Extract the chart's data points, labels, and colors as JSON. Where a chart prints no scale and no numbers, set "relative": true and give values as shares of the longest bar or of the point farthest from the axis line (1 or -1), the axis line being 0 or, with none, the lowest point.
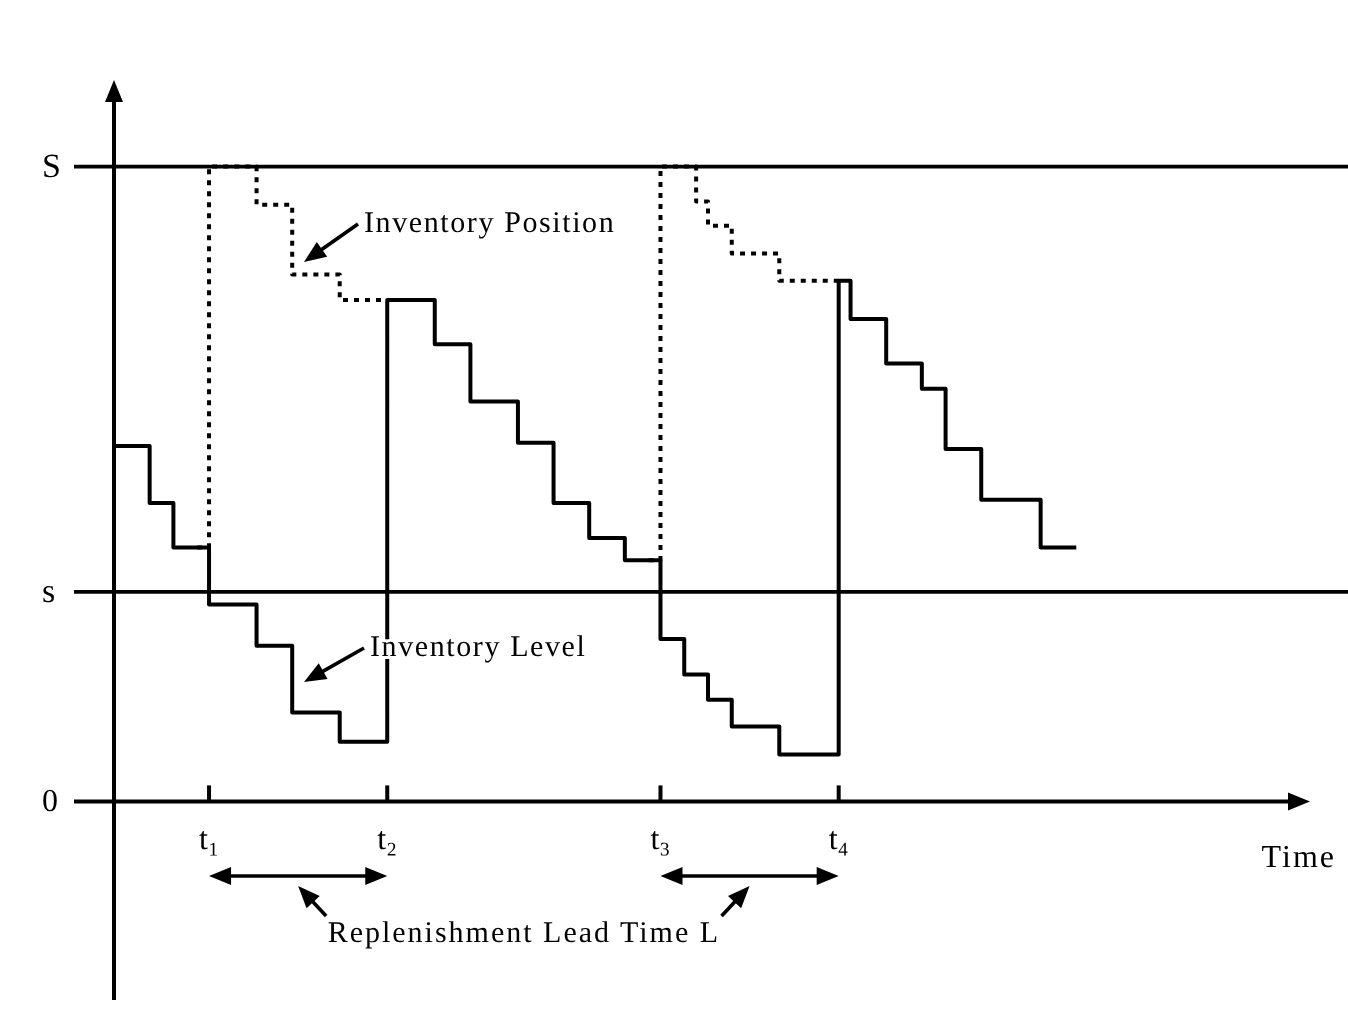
{
  "chart_data": {
    "type": "step",
    "relative": true,
    "xlabel": "Time",
    "categories": [
      null,
      null,
      null,
      null,
      null,
      null,
      null,
      null,
      "t₁",
      null,
      null,
      null,
      null,
      null,
      null,
      null,
      null,
      null,
      null,
      null,
      null,
      null,
      null,
      "t₂",
      null,
      null,
      null,
      null,
      null,
      null,
      null,
      null,
      null,
      null,
      null,
      null,
      null,
      null,
      null,
      null,
      null,
      null,
      null,
      null,
      null,
      null,
      "t₃",
      null,
      null,
      null,
      null,
      null,
      null,
      null,
      null,
      null,
      null,
      null,
      null,
      null,
      null,
      "t₄",
      null,
      null,
      null,
      null,
      null,
      null,
      null,
      null,
      null,
      null,
      null,
      null,
      null,
      null,
      null,
      null,
      null,
      null,
      null,
      null,
      null,
      null,
      null,
      null,
      null,
      null,
      null,
      null,
      null,
      null,
      null,
      null,
      null,
      null,
      null,
      null,
      null,
      null,
      null
    ],
    "series": [
      {
        "color": "#000000",
        "line_style": "solid",
        "values": [
          0.56,
          0.56,
          0.56,
          0.47,
          0.47,
          0.4,
          0.4,
          0.4,
          0.31,
          0.31,
          0.31,
          0.31,
          0.245,
          0.245,
          0.245,
          0.14,
          0.14,
          0.14,
          0.14,
          0.094,
          0.094,
          0.094,
          0.094,
          0.79,
          0.79,
          0.79,
          0.79,
          0.72,
          0.72,
          0.72,
          0.63,
          0.63,
          0.63,
          0.63,
          0.565,
          0.565,
          0.565,
          0.47,
          0.47,
          0.47,
          0.415,
          0.415,
          0.415,
          0.38,
          0.38,
          0.38,
          0.256,
          0.256,
          0.2,
          0.2,
          0.16,
          0.16,
          0.118,
          0.118,
          0.118,
          0.118,
          0.074,
          0.074,
          0.074,
          0.074,
          0.074,
          0.82,
          0.76,
          0.76,
          0.76,
          0.69,
          0.69,
          0.69,
          0.65,
          0.65,
          0.555,
          0.555,
          0.555,
          0.475,
          0.475,
          0.475,
          0.475,
          0.475,
          0.4,
          0.4,
          0.4,
          0.4,
          null,
          null,
          null,
          null,
          null,
          null,
          null,
          null,
          null,
          null,
          null,
          null,
          null,
          null,
          null,
          null,
          null,
          null,
          null
        ]
      },
      {
        "color": "#000000",
        "line_style": "dotted",
        "values": [
          null,
          null,
          null,
          null,
          null,
          null,
          null,
          0.4,
          1,
          1,
          1,
          1,
          0.94,
          0.94,
          0.94,
          0.83,
          0.83,
          0.83,
          0.83,
          0.79,
          0.79,
          0.79,
          0.79,
          0.79,
          null,
          null,
          null,
          null,
          null,
          null,
          null,
          null,
          null,
          null,
          null,
          null,
          null,
          null,
          null,
          null,
          null,
          null,
          null,
          null,
          null,
          0.38,
          1,
          1,
          1,
          0.945,
          0.907,
          0.907,
          0.863,
          0.863,
          0.863,
          0.863,
          0.82,
          0.82,
          0.82,
          0.82,
          0.82,
          0.82,
          null,
          null,
          null,
          null,
          null,
          null,
          null,
          null,
          null,
          null,
          null,
          null,
          null,
          null,
          null,
          null,
          null,
          null,
          null,
          null,
          null,
          null,
          null,
          null,
          null,
          null,
          null,
          null,
          null,
          null,
          null,
          null,
          null,
          null,
          null,
          null,
          null,
          null,
          null
        ]
      }
    ],
    "ref_lines": [
      {
        "axis": "y",
        "value": 1,
        "label": "S"
      },
      {
        "axis": "y",
        "value": 0.33,
        "label": "s"
      }
    ],
    "annotations": [
      "Inventory Position",
      "Inventory Level",
      "0",
      "Replenishment Lead Time L"
    ]
  }
}
